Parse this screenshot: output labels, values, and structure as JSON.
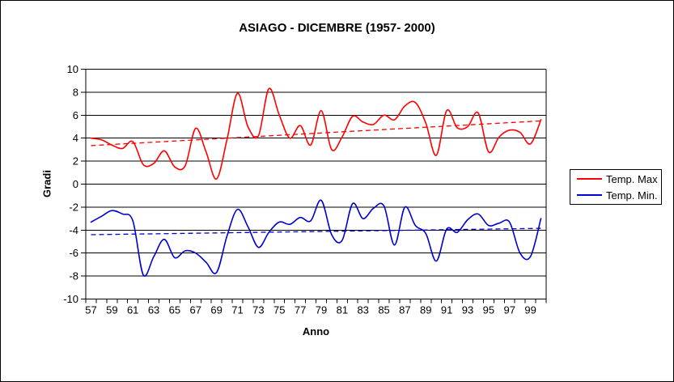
{
  "chart_data": {
    "type": "line",
    "title": "ASIAGO - DICEMBRE (1957- 2000)",
    "xlabel": "Anno",
    "ylabel": "Gradi",
    "ylim": [
      -10,
      10
    ],
    "grid": true,
    "legend_position": "right",
    "y_ticks": [
      10,
      8,
      6,
      4,
      2,
      0,
      -2,
      -4,
      -6,
      -8,
      -10
    ],
    "x_tick_labels": [
      "57",
      "59",
      "61",
      "63",
      "65",
      "67",
      "69",
      "71",
      "73",
      "75",
      "77",
      "79",
      "81",
      "83",
      "85",
      "87",
      "89",
      "91",
      "93",
      "95",
      "97",
      "99"
    ],
    "years": [
      1957,
      1958,
      1959,
      1960,
      1961,
      1962,
      1963,
      1964,
      1965,
      1966,
      1967,
      1968,
      1969,
      1970,
      1971,
      1972,
      1973,
      1974,
      1975,
      1976,
      1977,
      1978,
      1979,
      1980,
      1981,
      1982,
      1983,
      1984,
      1985,
      1986,
      1987,
      1988,
      1989,
      1990,
      1991,
      1992,
      1993,
      1994,
      1995,
      1996,
      1997,
      1998,
      1999,
      2000
    ],
    "series": [
      {
        "name": "Temp. Max",
        "color": "#ff0000",
        "line": "solid",
        "smooth": true,
        "values": [
          4.0,
          3.85,
          3.4,
          3.1,
          3.7,
          1.7,
          1.8,
          2.9,
          1.5,
          1.6,
          4.85,
          2.8,
          0.45,
          3.9,
          7.9,
          5.0,
          4.2,
          8.3,
          6.0,
          4.0,
          5.1,
          3.4,
          6.4,
          3.0,
          4.1,
          5.9,
          5.4,
          5.2,
          6.0,
          5.6,
          6.8,
          7.1,
          5.3,
          2.5,
          6.4,
          4.9,
          5.0,
          6.2,
          2.8,
          4.1,
          4.7,
          4.5,
          3.5,
          5.6
        ]
      },
      {
        "name": "Temp. Min.",
        "color": "#0000d0",
        "line": "solid",
        "smooth": true,
        "values": [
          -3.3,
          -2.8,
          -2.3,
          -2.6,
          -3.2,
          -7.9,
          -6.3,
          -4.8,
          -6.4,
          -5.8,
          -6.0,
          -6.8,
          -7.7,
          -4.5,
          -2.2,
          -3.7,
          -5.5,
          -4.2,
          -3.3,
          -3.5,
          -2.9,
          -3.2,
          -1.4,
          -4.4,
          -4.9,
          -1.7,
          -3.0,
          -2.1,
          -1.9,
          -5.3,
          -2.0,
          -3.6,
          -4.3,
          -6.7,
          -3.9,
          -4.2,
          -3.1,
          -2.6,
          -3.6,
          -3.4,
          -3.3,
          -6.0,
          -6.3,
          -3.0
        ]
      },
      {
        "name": "Temp. Max trend",
        "color": "#ff0000",
        "line": "dashed",
        "trend_endpoints": [
          3.35,
          5.5
        ]
      },
      {
        "name": "Temp. Min. trend",
        "color": "#0000d0",
        "line": "dashed",
        "trend_endpoints": [
          -4.4,
          -3.85
        ]
      }
    ],
    "legend_entries": [
      {
        "label": "Temp. Max",
        "color": "#ff0000"
      },
      {
        "label": "Temp. Min.",
        "color": "#0000d0"
      }
    ]
  }
}
